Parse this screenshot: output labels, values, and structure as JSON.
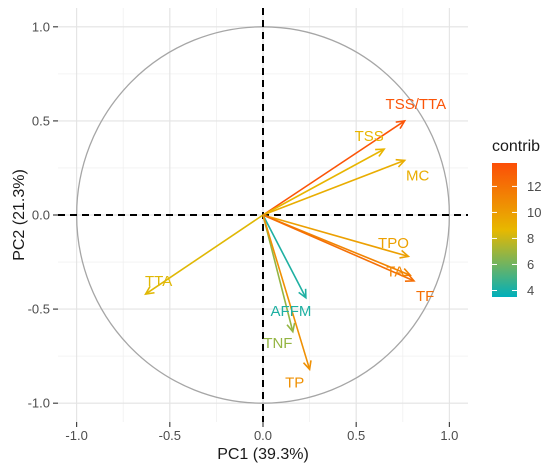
{
  "chart_data": {
    "type": "scatter",
    "subtype": "pca-correlation-circle",
    "xlabel": "PC1 (39.3%)",
    "ylabel": "PC2 (21.3%)",
    "xlim": [
      -1.1,
      1.1
    ],
    "ylim": [
      -1.1,
      1.1
    ],
    "x_ticks": [
      -1.0,
      -0.5,
      0.0,
      0.5,
      1.0
    ],
    "y_ticks": [
      -1.0,
      -0.5,
      0.0,
      0.5,
      1.0
    ],
    "x_tick_labels": [
      "-1.0",
      "-0.5",
      "0.0",
      "0.5",
      "1.0"
    ],
    "y_tick_labels": [
      "-1.0",
      "-0.5",
      "0.0",
      "0.5",
      "1.0"
    ],
    "grid": true,
    "unit_circle": true,
    "series": [
      {
        "name": "TSS/TTA",
        "x": 0.76,
        "y": 0.5,
        "contrib": 13.5,
        "label_x": 0.82,
        "label_y": 0.59
      },
      {
        "name": "TSS",
        "x": 0.65,
        "y": 0.35,
        "contrib": 8.8,
        "label_x": 0.57,
        "label_y": 0.42
      },
      {
        "name": "MC",
        "x": 0.76,
        "y": 0.29,
        "contrib": 9.2,
        "label_x": 0.83,
        "label_y": 0.21
      },
      {
        "name": "TPO",
        "x": 0.78,
        "y": -0.22,
        "contrib": 9.8,
        "label_x": 0.7,
        "label_y": -0.15
      },
      {
        "name": "TA",
        "x": 0.79,
        "y": -0.32,
        "contrib": 11.2,
        "label_x": 0.71,
        "label_y": -0.3
      },
      {
        "name": "TF",
        "x": 0.81,
        "y": -0.35,
        "contrib": 12.2,
        "label_x": 0.87,
        "label_y": -0.43
      },
      {
        "name": "TTA",
        "x": -0.63,
        "y": -0.42,
        "contrib": 8.5,
        "label_x": -0.56,
        "label_y": -0.35
      },
      {
        "name": "AFFM",
        "x": 0.23,
        "y": -0.44,
        "contrib": 4.2,
        "label_x": 0.15,
        "label_y": -0.51
      },
      {
        "name": "TNF",
        "x": 0.16,
        "y": -0.62,
        "contrib": 6.8,
        "label_x": 0.08,
        "label_y": -0.68
      },
      {
        "name": "TP",
        "x": 0.25,
        "y": -0.82,
        "contrib": 10.6,
        "label_x": 0.17,
        "label_y": -0.89
      }
    ],
    "legend": {
      "title": "contrib",
      "placement": "right",
      "min": 3.5,
      "max": 13.8,
      "ticks": [
        4,
        6,
        8,
        10,
        12
      ],
      "tick_labels": [
        "4",
        "6",
        "8",
        "10",
        "12"
      ],
      "gradient_stops": [
        {
          "value": 3.5,
          "color": "#00AFBB"
        },
        {
          "value": 8.65,
          "color": "#E7B800"
        },
        {
          "value": 13.8,
          "color": "#FC4E07"
        }
      ]
    }
  }
}
